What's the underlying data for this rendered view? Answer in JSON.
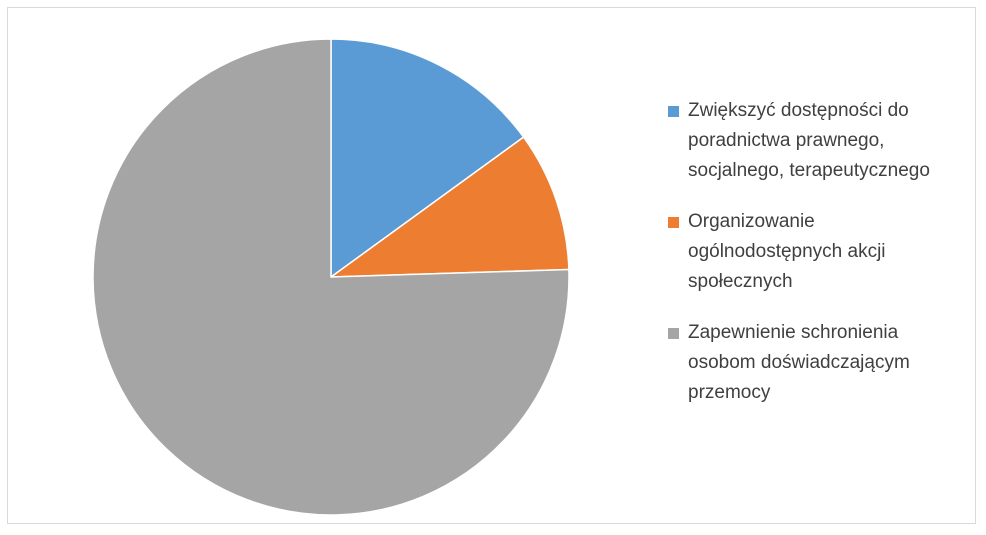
{
  "chart_data": {
    "type": "pie",
    "categories": [
      "Zwiększyć dostępności do poradnictwa prawnego, socjalnego, terapeutycznego",
      "Organizowanie ogólnodostępnych akcji społecznych",
      "Zapewnienie schronienia osobom doświadczającym przemocy"
    ],
    "values": [
      15,
      9.5,
      75.5
    ],
    "colors": [
      "#5b9bd5",
      "#ed7d31",
      "#a5a5a5"
    ],
    "legend": "right"
  }
}
